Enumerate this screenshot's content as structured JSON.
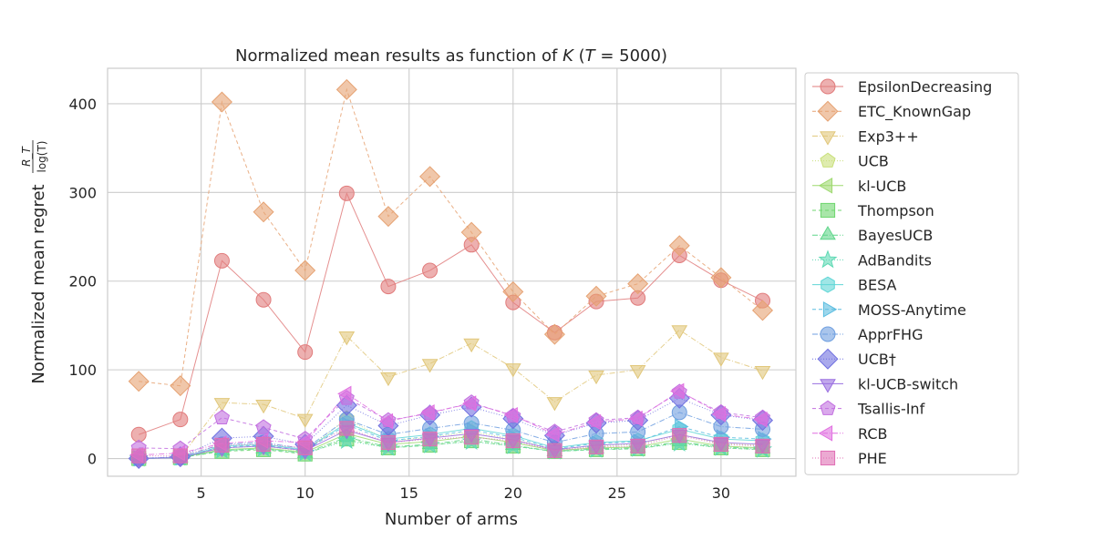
{
  "chart_data": {
    "type": "line",
    "title": "Normalized mean results as function of K (T = 5000)",
    "xlabel": "Number of arms",
    "ylabel": "Normalized mean regret",
    "ylabel_formula_num": "R_T",
    "ylabel_formula_den": "log(T)",
    "xlim": [
      0.5,
      33.6
    ],
    "ylim": [
      -20,
      440
    ],
    "xticks": [
      5,
      10,
      15,
      20,
      25,
      30
    ],
    "yticks": [
      0,
      100,
      200,
      300,
      400
    ],
    "grid": true,
    "legend_position": "outside-right",
    "x": [
      2,
      4,
      6,
      8,
      10,
      12,
      14,
      16,
      18,
      20,
      22,
      24,
      26,
      28,
      30,
      32
    ],
    "series": [
      {
        "name": "EpsilonDecreasing",
        "marker": "circle",
        "color": "#e17c7c",
        "dash": "solid",
        "values": [
          27,
          44,
          223,
          179,
          120,
          299,
          194,
          212,
          241,
          176,
          142,
          177,
          181,
          229,
          201,
          178
        ]
      },
      {
        "name": "ETC_KnownGap",
        "marker": "diamond",
        "color": "#e6a272",
        "dash": "4,3",
        "values": [
          87,
          82,
          402,
          278,
          212,
          416,
          273,
          318,
          255,
          188,
          140,
          183,
          197,
          240,
          204,
          167
        ]
      },
      {
        "name": "Exp3++",
        "marker": "triangle-down",
        "color": "#e1c77a",
        "dash": "6,2,1,2",
        "values": [
          0,
          1,
          63,
          61,
          45,
          138,
          92,
          107,
          130,
          102,
          64,
          94,
          100,
          145,
          114,
          99
        ]
      },
      {
        "name": "UCB",
        "marker": "pentagon",
        "color": "#c9e07a",
        "dash": "1,2",
        "values": [
          0,
          1,
          12,
          14,
          8,
          45,
          20,
          24,
          30,
          22,
          10,
          14,
          16,
          27,
          17,
          15
        ]
      },
      {
        "name": "kl-UCB",
        "marker": "triangle-left",
        "color": "#9ed96f",
        "dash": "solid",
        "values": [
          0,
          1,
          10,
          12,
          7,
          28,
          16,
          19,
          25,
          18,
          9,
          12,
          13,
          22,
          14,
          12
        ]
      },
      {
        "name": "Thompson",
        "marker": "square",
        "color": "#6fd66f",
        "dash": "4,3",
        "values": [
          0,
          1,
          8,
          10,
          5,
          22,
          12,
          15,
          20,
          14,
          8,
          10,
          11,
          18,
          12,
          10
        ]
      },
      {
        "name": "BayesUCB",
        "marker": "triangle-up",
        "color": "#5fd68a",
        "dash": "6,2,1,2",
        "values": [
          0,
          1,
          9,
          11,
          6,
          24,
          13,
          16,
          22,
          15,
          8,
          11,
          12,
          19,
          13,
          11
        ]
      },
      {
        "name": "AdBandits",
        "marker": "star",
        "color": "#5ed9b4",
        "dash": "1,2",
        "values": [
          0,
          1,
          9,
          11,
          6,
          20,
          12,
          15,
          19,
          14,
          8,
          10,
          11,
          17,
          12,
          10
        ]
      },
      {
        "name": "BESA",
        "marker": "hexagon",
        "color": "#5fd6d6",
        "dash": "solid",
        "values": [
          0,
          1,
          14,
          16,
          10,
          40,
          22,
          27,
          34,
          26,
          12,
          18,
          20,
          33,
          22,
          20
        ]
      },
      {
        "name": "MOSS-Anytime",
        "marker": "triangle-right",
        "color": "#5bbde0",
        "dash": "4,3",
        "values": [
          0,
          1,
          13,
          15,
          9,
          38,
          20,
          25,
          32,
          24,
          11,
          17,
          19,
          36,
          24,
          22
        ]
      },
      {
        "name": "ApprFHG",
        "marker": "circle",
        "color": "#6f9fe0",
        "dash": "6,2,1,2",
        "values": [
          0,
          2,
          16,
          18,
          11,
          44,
          27,
          34,
          40,
          32,
          18,
          28,
          30,
          52,
          36,
          33
        ]
      },
      {
        "name": "UCB†",
        "marker": "diamond",
        "color": "#6f6fe0",
        "dash": "1,2",
        "values": [
          0,
          2,
          23,
          25,
          16,
          60,
          37,
          49,
          58,
          45,
          26,
          40,
          43,
          68,
          49,
          43
        ]
      },
      {
        "name": "kl-UCB-switch",
        "marker": "triangle-down",
        "color": "#9a6fe0",
        "dash": "solid",
        "values": [
          0,
          1,
          12,
          14,
          9,
          32,
          18,
          23,
          28,
          21,
          10,
          15,
          17,
          27,
          18,
          16
        ]
      },
      {
        "name": "Tsallis-Inf",
        "marker": "pentagon",
        "color": "#c26fe0",
        "dash": "4,3",
        "values": [
          12,
          11,
          46,
          35,
          22,
          68,
          43,
          51,
          63,
          48,
          30,
          43,
          46,
          75,
          52,
          46
        ]
      },
      {
        "name": "RCB",
        "marker": "triangle-left",
        "color": "#e06fe0",
        "dash": "6,2,1,2",
        "values": [
          4,
          6,
          17,
          20,
          18,
          73,
          42,
          52,
          62,
          49,
          27,
          41,
          45,
          76,
          50,
          44
        ]
      },
      {
        "name": "PHE",
        "marker": "square",
        "color": "#e06fb4",
        "dash": "1,2",
        "values": [
          3,
          3,
          15,
          16,
          12,
          34,
          18,
          22,
          24,
          20,
          9,
          13,
          14,
          26,
          16,
          14
        ]
      }
    ]
  }
}
